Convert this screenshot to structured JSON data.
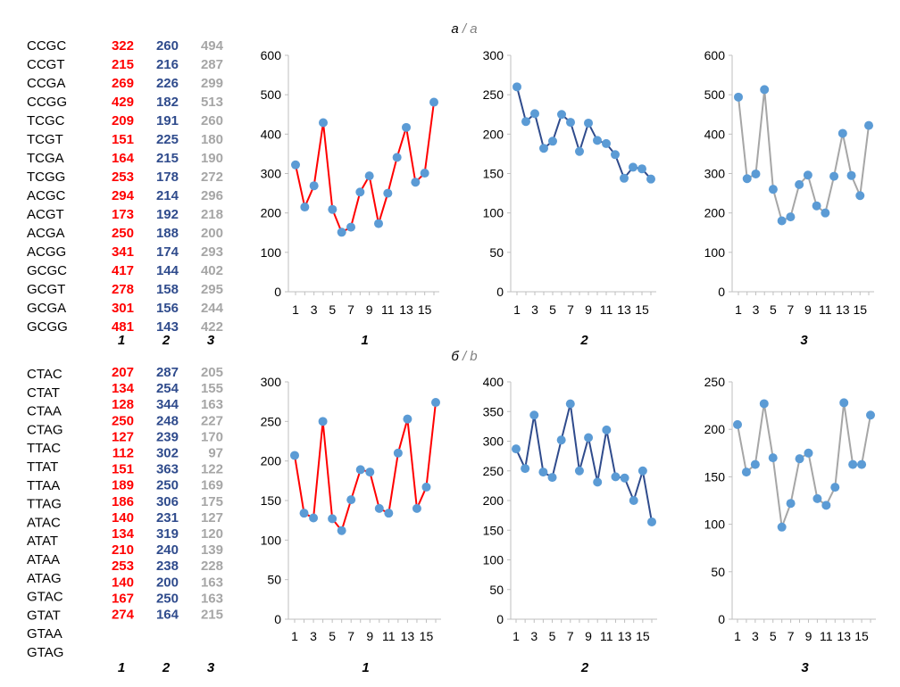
{
  "colors": {
    "series1": "#ff0000",
    "series2": "#2f4b8c",
    "series3": "#a6a6a6",
    "marker": "#5b9bd5",
    "axis": "#bfbfbf"
  },
  "chart_data": [
    {
      "panel": "a",
      "title_left": "а",
      "title_right": "a",
      "table": {
        "rows": [
          "CCGC",
          "CCGT",
          "CCGA",
          "CCGG",
          "TCGC",
          "TCGT",
          "TCGA",
          "TCGG",
          "ACGC",
          "ACGT",
          "ACGA",
          "ACGG",
          "GCGC",
          "GCGT",
          "GCGA",
          "GCGG"
        ],
        "column_labels": [
          "1",
          "2",
          "3"
        ]
      },
      "charts": [
        {
          "type": "line",
          "label": "1",
          "color": "series1",
          "ylim": [
            0,
            600
          ],
          "yticks": [
            0,
            100,
            200,
            300,
            400,
            500,
            600
          ],
          "xticks": [
            "1",
            "3",
            "5",
            "7",
            "9",
            "11",
            "13",
            "15"
          ],
          "values": [
            322,
            215,
            269,
            429,
            209,
            151,
            164,
            253,
            294,
            173,
            250,
            341,
            417,
            278,
            301,
            481
          ]
        },
        {
          "type": "line",
          "label": "2",
          "color": "series2",
          "ylim": [
            0,
            300
          ],
          "yticks": [
            0,
            50,
            100,
            150,
            200,
            250,
            300
          ],
          "xticks": [
            "1",
            "3",
            "5",
            "7",
            "9",
            "11",
            "13",
            "15"
          ],
          "values": [
            260,
            216,
            226,
            182,
            191,
            225,
            215,
            178,
            214,
            192,
            188,
            174,
            144,
            158,
            156,
            143
          ]
        },
        {
          "type": "line",
          "label": "3",
          "color": "series3",
          "ylim": [
            0,
            600
          ],
          "yticks": [
            0,
            100,
            200,
            300,
            400,
            500,
            600
          ],
          "xticks": [
            "1",
            "3",
            "5",
            "7",
            "9",
            "11",
            "13",
            "15"
          ],
          "values": [
            494,
            287,
            299,
            513,
            260,
            180,
            190,
            272,
            296,
            218,
            200,
            293,
            402,
            295,
            244,
            422
          ]
        }
      ]
    },
    {
      "panel": "b",
      "title_left": "б",
      "title_right": "b",
      "table": {
        "rows": [
          "CTAC",
          "CTAT",
          "CTAA",
          "CTAG",
          "TTAC",
          "TTAT",
          "TTAA",
          "TTAG",
          "ATAC",
          "ATAT",
          "ATAA",
          "ATAG",
          "GTAC",
          "GTAT",
          "GTAA",
          "GTAG"
        ],
        "column_labels": [
          "1",
          "2",
          "3"
        ]
      },
      "charts": [
        {
          "type": "line",
          "label": "1",
          "color": "series1",
          "ylim": [
            0,
            300
          ],
          "yticks": [
            0,
            50,
            100,
            150,
            200,
            250,
            300
          ],
          "xticks": [
            "1",
            "3",
            "5",
            "7",
            "9",
            "11",
            "13",
            "15"
          ],
          "values": [
            207,
            134,
            128,
            250,
            127,
            112,
            151,
            189,
            186,
            140,
            134,
            210,
            253,
            140,
            167,
            274
          ]
        },
        {
          "type": "line",
          "label": "2",
          "color": "series2",
          "ylim": [
            0,
            400
          ],
          "yticks": [
            0,
            50,
            100,
            150,
            200,
            250,
            300,
            350,
            400
          ],
          "xticks": [
            "1",
            "3",
            "5",
            "7",
            "9",
            "11",
            "13",
            "15"
          ],
          "values": [
            287,
            254,
            344,
            248,
            239,
            302,
            363,
            250,
            306,
            231,
            319,
            240,
            238,
            200,
            250,
            164
          ]
        },
        {
          "type": "line",
          "label": "3",
          "color": "series3",
          "ylim": [
            0,
            250
          ],
          "yticks": [
            0,
            50,
            100,
            150,
            200,
            250
          ],
          "xticks": [
            "1",
            "3",
            "5",
            "7",
            "9",
            "11",
            "13",
            "15"
          ],
          "values": [
            205,
            155,
            163,
            227,
            170,
            97,
            122,
            169,
            175,
            127,
            120,
            139,
            228,
            163,
            163,
            215
          ]
        }
      ]
    }
  ]
}
